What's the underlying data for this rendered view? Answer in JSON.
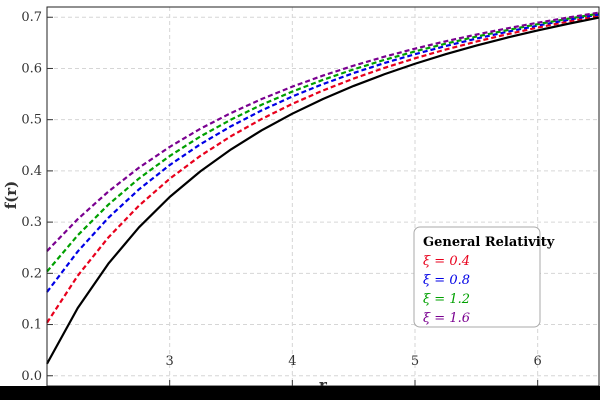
{
  "chart_data": {
    "type": "line",
    "xlabel": "r",
    "ylabel": "f(r)",
    "xlim": [
      2.0,
      6.5
    ],
    "ylim": [
      -0.02,
      0.72
    ],
    "xticks": [
      "3",
      "4",
      "5",
      "6"
    ],
    "yticks": [
      "0.0",
      "0.1",
      "0.2",
      "0.3",
      "0.4",
      "0.5",
      "0.6",
      "0.7"
    ],
    "grid": true,
    "legend_position": "bottom-right",
    "series": [
      {
        "name": "General Relativity",
        "color": "#000000",
        "dash": "solid",
        "x": [
          2.0,
          2.25,
          2.5,
          2.75,
          3.0,
          3.25,
          3.5,
          3.75,
          4.0,
          4.25,
          4.5,
          4.75,
          5.0,
          5.25,
          5.5,
          5.75,
          6.0,
          6.25,
          6.5
        ],
        "y": [
          0.0235,
          0.132,
          0.2188,
          0.2898,
          0.349,
          0.3991,
          0.442,
          0.4792,
          0.5117,
          0.5404,
          0.5659,
          0.5887,
          0.6092,
          0.6278,
          0.6447,
          0.6602,
          0.6743,
          0.6873,
          0.6994
        ]
      },
      {
        "name": "ξ = 0.4",
        "color": "#e8001c",
        "dash": "dashed",
        "x": [
          2.0,
          2.25,
          2.5,
          2.75,
          3.0,
          3.25,
          3.5,
          3.75,
          4.0,
          4.25,
          4.5,
          4.75,
          5.0,
          5.25,
          5.5,
          5.75,
          6.0,
          6.25,
          6.5
        ],
        "y": [
          0.1035,
          0.1951,
          0.27,
          0.3322,
          0.3846,
          0.4293,
          0.4678,
          0.5014,
          0.5309,
          0.557,
          0.5803,
          0.6011,
          0.6199,
          0.637,
          0.6525,
          0.6667,
          0.6798,
          0.6918,
          0.7029
        ]
      },
      {
        "name": "ξ = 0.8",
        "color": "#0000e6",
        "dash": "dashed",
        "x": [
          2.0,
          2.25,
          2.5,
          2.75,
          3.0,
          3.25,
          3.5,
          3.75,
          4.0,
          4.25,
          4.5,
          4.75,
          5.0,
          5.25,
          5.5,
          5.75,
          6.0,
          6.25,
          6.5
        ],
        "y": [
          0.1635,
          0.2425,
          0.3084,
          0.364,
          0.4113,
          0.452,
          0.4872,
          0.5181,
          0.5453,
          0.5695,
          0.5911,
          0.6105,
          0.6279,
          0.6438,
          0.6583,
          0.6715,
          0.6837,
          0.695,
          0.7054
        ]
      },
      {
        "name": "ξ = 1.2",
        "color": "#00a000",
        "dash": "dashed",
        "x": [
          2.0,
          2.25,
          2.5,
          2.75,
          3.0,
          3.25,
          3.5,
          3.75,
          4.0,
          4.25,
          4.5,
          4.75,
          5.0,
          5.25,
          5.5,
          5.75,
          6.0,
          6.25,
          6.5
        ],
        "y": [
          0.2035,
          0.2741,
          0.334,
          0.3852,
          0.429,
          0.4672,
          0.5001,
          0.5292,
          0.5549,
          0.5778,
          0.5983,
          0.6168,
          0.6333,
          0.6484,
          0.6622,
          0.6748,
          0.6865,
          0.6972,
          0.7072
        ]
      },
      {
        "name": "ξ = 1.6",
        "color": "#7a0090",
        "dash": "dashed",
        "x": [
          2.0,
          2.25,
          2.5,
          2.75,
          3.0,
          3.25,
          3.5,
          3.75,
          4.0,
          4.25,
          4.5,
          4.75,
          5.0,
          5.25,
          5.5,
          5.75,
          6.0,
          6.25,
          6.5
        ],
        "y": [
          0.2435,
          0.3057,
          0.3596,
          0.4063,
          0.4468,
          0.4823,
          0.513,
          0.5403,
          0.5645,
          0.5861,
          0.6055,
          0.623,
          0.6387,
          0.6531,
          0.6662,
          0.6782,
          0.6893,
          0.6995,
          0.709
        ]
      }
    ]
  }
}
